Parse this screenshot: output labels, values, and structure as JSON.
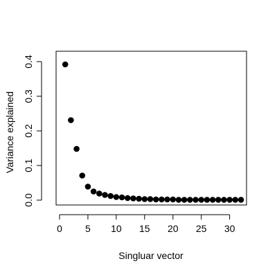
{
  "chart_data": {
    "type": "scatter",
    "title": "",
    "xlabel": "Singluar vector",
    "ylabel": "Variance explained",
    "xlim": [
      0,
      33
    ],
    "ylim": [
      -0.01,
      0.41
    ],
    "xticks": [
      0,
      5,
      10,
      15,
      20,
      25,
      30
    ],
    "xtick_labels": [
      "0",
      "5",
      "10",
      "15",
      "20",
      "25",
      "30"
    ],
    "yticks": [
      0.0,
      0.1,
      0.2,
      0.3,
      0.4
    ],
    "ytick_labels": [
      "0.0",
      "0.1",
      "0.2",
      "0.3",
      "0.4"
    ],
    "grid": false,
    "legend": "none",
    "marker_color": "#000000",
    "series": [
      {
        "x": [
          1,
          2,
          3,
          4,
          5,
          6,
          7,
          8,
          9,
          10,
          11,
          12,
          13,
          14,
          15,
          16,
          17,
          18,
          19,
          20,
          21,
          22,
          23,
          24,
          25,
          26,
          27,
          28,
          29,
          30,
          31,
          32
        ],
        "values": [
          0.392,
          0.231,
          0.148,
          0.071,
          0.039,
          0.025,
          0.019,
          0.015,
          0.012,
          0.009,
          0.008,
          0.006,
          0.005,
          0.004,
          0.003,
          0.003,
          0.002,
          0.002,
          0.002,
          0.002,
          0.001,
          0.001,
          0.001,
          0.001,
          0.001,
          0.001,
          0.001,
          0.001,
          0.001,
          0.001,
          0.001,
          0.001
        ]
      }
    ]
  }
}
